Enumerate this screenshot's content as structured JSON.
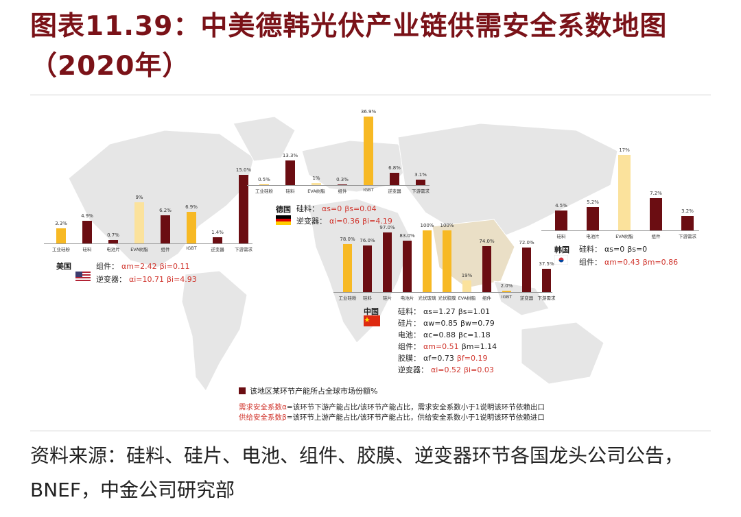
{
  "title": "图表11.39：中美德韩光伏产业链供需安全系数地图（2020年）",
  "colors": {
    "dark": "#6b0d12",
    "yellow": "#f7b924",
    "light_yellow": "#fbe29c",
    "red": "#d0342c",
    "map": "#e6e6e6"
  },
  "chart_data": {
    "type": "bar",
    "title": "",
    "legend": "该地区某环节产能所占全球市场份额%",
    "regions": [
      {
        "id": "us",
        "name": "美国",
        "flag": "us-flag",
        "categories": [
          "工业硅粉",
          "硅料",
          "电池片",
          "EVA树脂",
          "组件",
          "IGBT",
          "逆变器",
          "下游需求"
        ],
        "value_labels": [
          "3.3%",
          "4.9%",
          "0.7%",
          "9%",
          "6.2%",
          "6.9%",
          "1.4%",
          "15.0%"
        ],
        "values": [
          3.3,
          4.9,
          0.7,
          9,
          6.2,
          6.9,
          1.4,
          15.0
        ],
        "fills": [
          "yellow",
          "dark",
          "dark",
          "light_yellow",
          "dark",
          "yellow",
          "dark",
          "dark"
        ],
        "coefficients": [
          {
            "segment": "组件",
            "alpha": "αm=2.42",
            "beta": "βi=0.11",
            "alpha_red": true,
            "beta_red": true
          },
          {
            "segment": "逆变器",
            "alpha": "αi=10.71",
            "beta": "βi=4.93",
            "alpha_red": true,
            "beta_red": true
          }
        ]
      },
      {
        "id": "de",
        "name": "德国",
        "flag": "germany-flag",
        "categories": [
          "工业硅粉",
          "硅料",
          "EVA树脂",
          "组件",
          "IGBT",
          "逆变器",
          "下游需求"
        ],
        "value_labels": [
          "0.5%",
          "13.3%",
          "1%",
          "0.3%",
          "36.9%",
          "6.8%",
          "3.1%"
        ],
        "values": [
          0.5,
          13.3,
          1,
          0.3,
          36.9,
          6.8,
          3.1
        ],
        "fills": [
          "yellow",
          "dark",
          "light_yellow",
          "dark",
          "yellow",
          "dark",
          "dark"
        ],
        "coefficients": [
          {
            "segment": "硅料",
            "alpha": "αs=0",
            "beta": "βs=0.04",
            "alpha_red": true,
            "beta_red": true
          },
          {
            "segment": "逆变器",
            "alpha": "αi=0.36",
            "beta": "βi=4.19",
            "alpha_red": true,
            "beta_red": true
          }
        ]
      },
      {
        "id": "kr",
        "name": "韩国",
        "flag": "korea-flag",
        "categories": [
          "硅料",
          "电池片",
          "EVA树脂",
          "组件",
          "下游需求"
        ],
        "value_labels": [
          "4.5%",
          "5.2%",
          "17%",
          "7.2%",
          "3.2%"
        ],
        "values": [
          4.5,
          5.2,
          17,
          7.2,
          3.2
        ],
        "fills": [
          "dark",
          "dark",
          "light_yellow",
          "dark",
          "dark"
        ],
        "coefficients": [
          {
            "segment": "硅料",
            "alpha": "αs=0",
            "beta": "βs=0",
            "alpha_red": false,
            "beta_red": false
          },
          {
            "segment": "组件",
            "alpha": "αm=0.43",
            "beta": "βm=0.86",
            "alpha_red": true,
            "beta_red": true
          }
        ]
      },
      {
        "id": "cn",
        "name": "中国",
        "flag": "china-flag",
        "categories": [
          "工业硅粉",
          "硅料",
          "硅片",
          "电池片",
          "光伏玻璃",
          "光伏胶膜",
          "EVA树脂",
          "组件",
          "IGBT",
          "逆变器",
          "下游需求"
        ],
        "value_labels": [
          "78.0%",
          "76.0%",
          "97.0%",
          "83.0%",
          "100%",
          "100%",
          "19%",
          "74.0%",
          "2.0%",
          "72.0%",
          "37.5%"
        ],
        "values": [
          78.0,
          76.0,
          97.0,
          83.0,
          100,
          100,
          19,
          74.0,
          2.0,
          72.0,
          37.5
        ],
        "fills": [
          "yellow",
          "dark",
          "dark",
          "dark",
          "yellow",
          "yellow",
          "light_yellow",
          "dark",
          "yellow",
          "dark",
          "dark"
        ],
        "coefficients": [
          {
            "segment": "硅料",
            "alpha": "αs=1.27",
            "beta": "βs=1.01",
            "alpha_red": false,
            "beta_red": false
          },
          {
            "segment": "硅片",
            "alpha": "αw=0.85",
            "beta": "βw=0.79",
            "alpha_red": false,
            "beta_red": false
          },
          {
            "segment": "电池",
            "alpha": "αc=0.88",
            "beta": "βc=1.18",
            "alpha_red": false,
            "beta_red": false
          },
          {
            "segment": "组件",
            "alpha": "αm=0.51",
            "beta": "βm=1.14",
            "alpha_red": true,
            "beta_red": false
          },
          {
            "segment": "胶膜",
            "alpha": "αf=0.73",
            "beta": "βf=0.19",
            "alpha_red": false,
            "beta_red": true
          },
          {
            "segment": "逆变器",
            "alpha": "αi=0.52",
            "beta": "βi=0.03",
            "alpha_red": true,
            "beta_red": true
          }
        ]
      }
    ]
  },
  "notes": {
    "demand_label": "需求安全系数α",
    "demand_text": "=该环节下游产能占比/该环节产能占比，需求安全系数小于1说明该环节依赖出口",
    "supply_label": "供给安全系数β",
    "supply_text": "=该环节上游产能占比/该环节产能占比，供给安全系数小于1说明该环节依赖进口"
  },
  "source": "资料来源：硅料、硅片、电池、组件、胶膜、逆变器环节各国龙头公司公告，BNEF，中金公司研究部"
}
